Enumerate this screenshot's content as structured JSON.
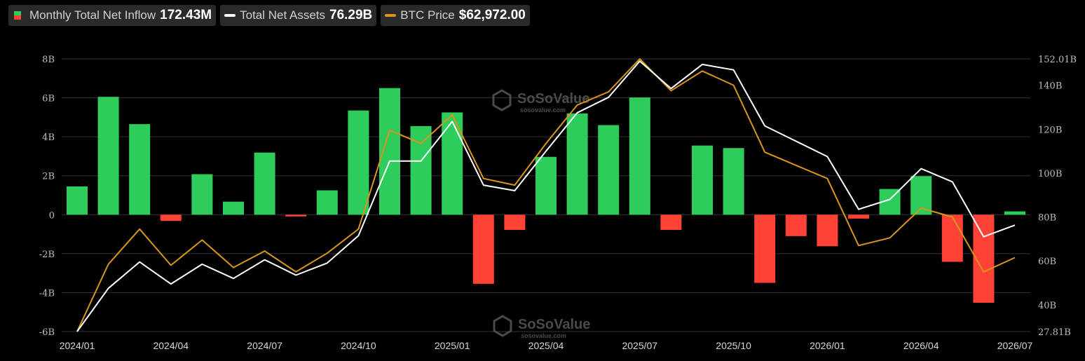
{
  "legend": {
    "inflow": {
      "label": "Monthly Total Net Inflow",
      "value": "172.43M",
      "color_pos": "#2ecc5a",
      "color_neg": "#ff4136"
    },
    "assets": {
      "label": "Total Net Assets",
      "value": "76.29B",
      "color": "#ffffff"
    },
    "btc": {
      "label": "BTC Price",
      "value": "$62,972.00",
      "color": "#d9961a"
    }
  },
  "watermark": {
    "brand": "SoSoValue",
    "site": "sosovalue.com"
  },
  "chart_data": {
    "type": "bar",
    "categories": [
      "2024/01",
      "2024/02",
      "2024/03",
      "2024/04",
      "2024/05",
      "2024/06",
      "2024/07",
      "2024/08",
      "2024/09",
      "2024/10",
      "2024/11",
      "2024/12",
      "2025/01",
      "2025/02",
      "2025/03",
      "2025/04",
      "2025/05",
      "2025/06",
      "2025/07",
      "2025/08",
      "2025/09",
      "2025/10",
      "2025/11",
      "2025/12",
      "2026/01",
      "2026/02",
      "2026/03",
      "2026/04",
      "2026/05",
      "2026/06",
      "2026/07"
    ],
    "x_tick_labels": [
      "2024/01",
      "2024/04",
      "2024/07",
      "2024/10",
      "2025/01",
      "2025/04",
      "2025/07",
      "2025/10",
      "2026/01",
      "2026/04",
      "2026/07"
    ],
    "y_left": {
      "ticks": [
        "8B",
        "6B",
        "4B",
        "2B",
        "0",
        "-2B",
        "-4B",
        "-6B"
      ],
      "min": -6,
      "max": 8
    },
    "y_right": {
      "ticks": [
        "152.01B",
        "140B",
        "120B",
        "100B",
        "80B",
        "60B",
        "40B",
        "27.81B"
      ],
      "min": 27.81,
      "max": 152.01
    },
    "grid": true,
    "series": [
      {
        "name": "Monthly Total Net Inflow",
        "axis": "left",
        "kind": "bar",
        "values": [
          1.45,
          6.05,
          4.65,
          -0.32,
          2.08,
          0.67,
          3.19,
          -0.09,
          1.25,
          5.35,
          6.5,
          4.55,
          5.25,
          -3.55,
          -0.78,
          2.97,
          5.2,
          4.6,
          6.02,
          -0.78,
          3.55,
          3.42,
          -3.5,
          -1.1,
          -1.62,
          -0.2,
          1.32,
          1.98,
          -2.42,
          -4.52,
          0.17
        ]
      },
      {
        "name": "Total Net Assets",
        "axis": "right",
        "kind": "line",
        "values": [
          27.81,
          47.5,
          59.5,
          49.5,
          58.5,
          52.0,
          60.5,
          53.5,
          59.0,
          71.5,
          105.5,
          105.5,
          123.5,
          94.5,
          92.0,
          110.0,
          127.5,
          134.5,
          151.0,
          138.5,
          149.5,
          147.0,
          121.5,
          114.5,
          107.5,
          83.5,
          88.0,
          102.0,
          96.0,
          71.0,
          76.29
        ]
      },
      {
        "name": "BTC Price",
        "axis": "right",
        "kind": "line",
        "values": [
          27.81,
          58.5,
          74.5,
          58.0,
          69.5,
          57.0,
          64.5,
          55.0,
          63.5,
          74.5,
          119.5,
          113.5,
          126.5,
          97.5,
          94.5,
          113.5,
          131.0,
          137.0,
          152.0,
          137.5,
          146.5,
          140.0,
          109.5,
          103.5,
          97.5,
          67.0,
          70.5,
          84.0,
          80.0,
          55.0,
          61.5
        ]
      }
    ]
  }
}
